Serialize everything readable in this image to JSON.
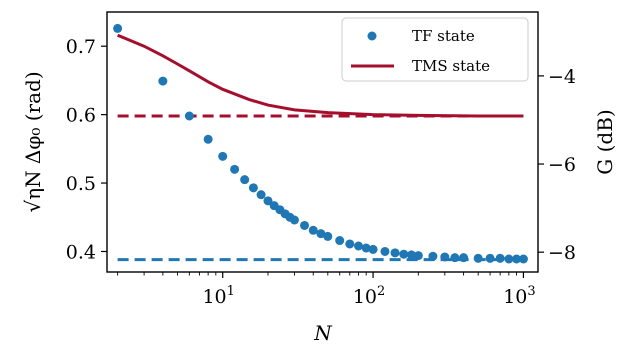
{
  "chart_data": {
    "type": "scatter",
    "x_scale": "log",
    "xlim": [
      1.7,
      1250
    ],
    "ylim_left": [
      0.37,
      0.75
    ],
    "ylim_right": [
      -8.45,
      -2.55
    ],
    "xlabel": "N",
    "ylabel_left": "√ηN Δφ₀ (rad)",
    "ylabel_right": "G (dB)",
    "x_ticks": [
      {
        "value": 10,
        "base": "10",
        "exp": "1"
      },
      {
        "value": 100,
        "base": "10",
        "exp": "2"
      },
      {
        "value": 1000,
        "base": "10",
        "exp": "3"
      }
    ],
    "y_ticks_left": [
      {
        "value": 0.4,
        "label": "0.4"
      },
      {
        "value": 0.5,
        "label": "0.5"
      },
      {
        "value": 0.6,
        "label": "0.6"
      },
      {
        "value": 0.7,
        "label": "0.7"
      }
    ],
    "y_ticks_right": [
      {
        "value": -4,
        "label": "−4"
      },
      {
        "value": -6,
        "label": "−6"
      },
      {
        "value": -8,
        "label": "−8"
      }
    ],
    "legend_position": "top-right",
    "series": [
      {
        "name": "TF state",
        "kind": "scatter",
        "axis": "left",
        "color": "#1f77b4",
        "asymptote": 0.388,
        "points": [
          [
            2,
            0.726
          ],
          [
            4,
            0.649
          ],
          [
            6,
            0.598
          ],
          [
            8,
            0.564
          ],
          [
            10,
            0.539
          ],
          [
            12,
            0.52
          ],
          [
            14,
            0.505
          ],
          [
            16,
            0.493
          ],
          [
            18,
            0.483
          ],
          [
            20,
            0.474
          ],
          [
            22,
            0.467
          ],
          [
            24,
            0.461
          ],
          [
            26,
            0.455
          ],
          [
            28,
            0.45
          ],
          [
            30,
            0.446
          ],
          [
            35,
            0.438
          ],
          [
            40,
            0.431
          ],
          [
            45,
            0.426
          ],
          [
            50,
            0.422
          ],
          [
            60,
            0.416
          ],
          [
            70,
            0.411
          ],
          [
            80,
            0.408
          ],
          [
            90,
            0.405
          ],
          [
            100,
            0.403
          ],
          [
            120,
            0.4
          ],
          [
            140,
            0.398
          ],
          [
            160,
            0.396
          ],
          [
            180,
            0.395
          ],
          [
            200,
            0.394
          ],
          [
            250,
            0.393
          ],
          [
            300,
            0.392
          ],
          [
            350,
            0.391
          ],
          [
            400,
            0.391
          ],
          [
            500,
            0.39
          ],
          [
            600,
            0.39
          ],
          [
            700,
            0.39
          ],
          [
            800,
            0.389
          ],
          [
            900,
            0.389
          ],
          [
            1000,
            0.389
          ]
        ]
      },
      {
        "name": "TMS state",
        "kind": "line",
        "axis": "left",
        "color": "#a50f2d",
        "asymptote": 0.598,
        "points": [
          [
            2,
            0.716
          ],
          [
            3,
            0.7
          ],
          [
            4,
            0.686
          ],
          [
            5,
            0.674
          ],
          [
            6,
            0.664
          ],
          [
            8,
            0.648
          ],
          [
            10,
            0.637
          ],
          [
            15,
            0.622
          ],
          [
            20,
            0.614
          ],
          [
            30,
            0.607
          ],
          [
            50,
            0.603
          ],
          [
            100,
            0.6
          ],
          [
            200,
            0.599
          ],
          [
            500,
            0.598
          ],
          [
            1000,
            0.598
          ]
        ]
      }
    ]
  }
}
